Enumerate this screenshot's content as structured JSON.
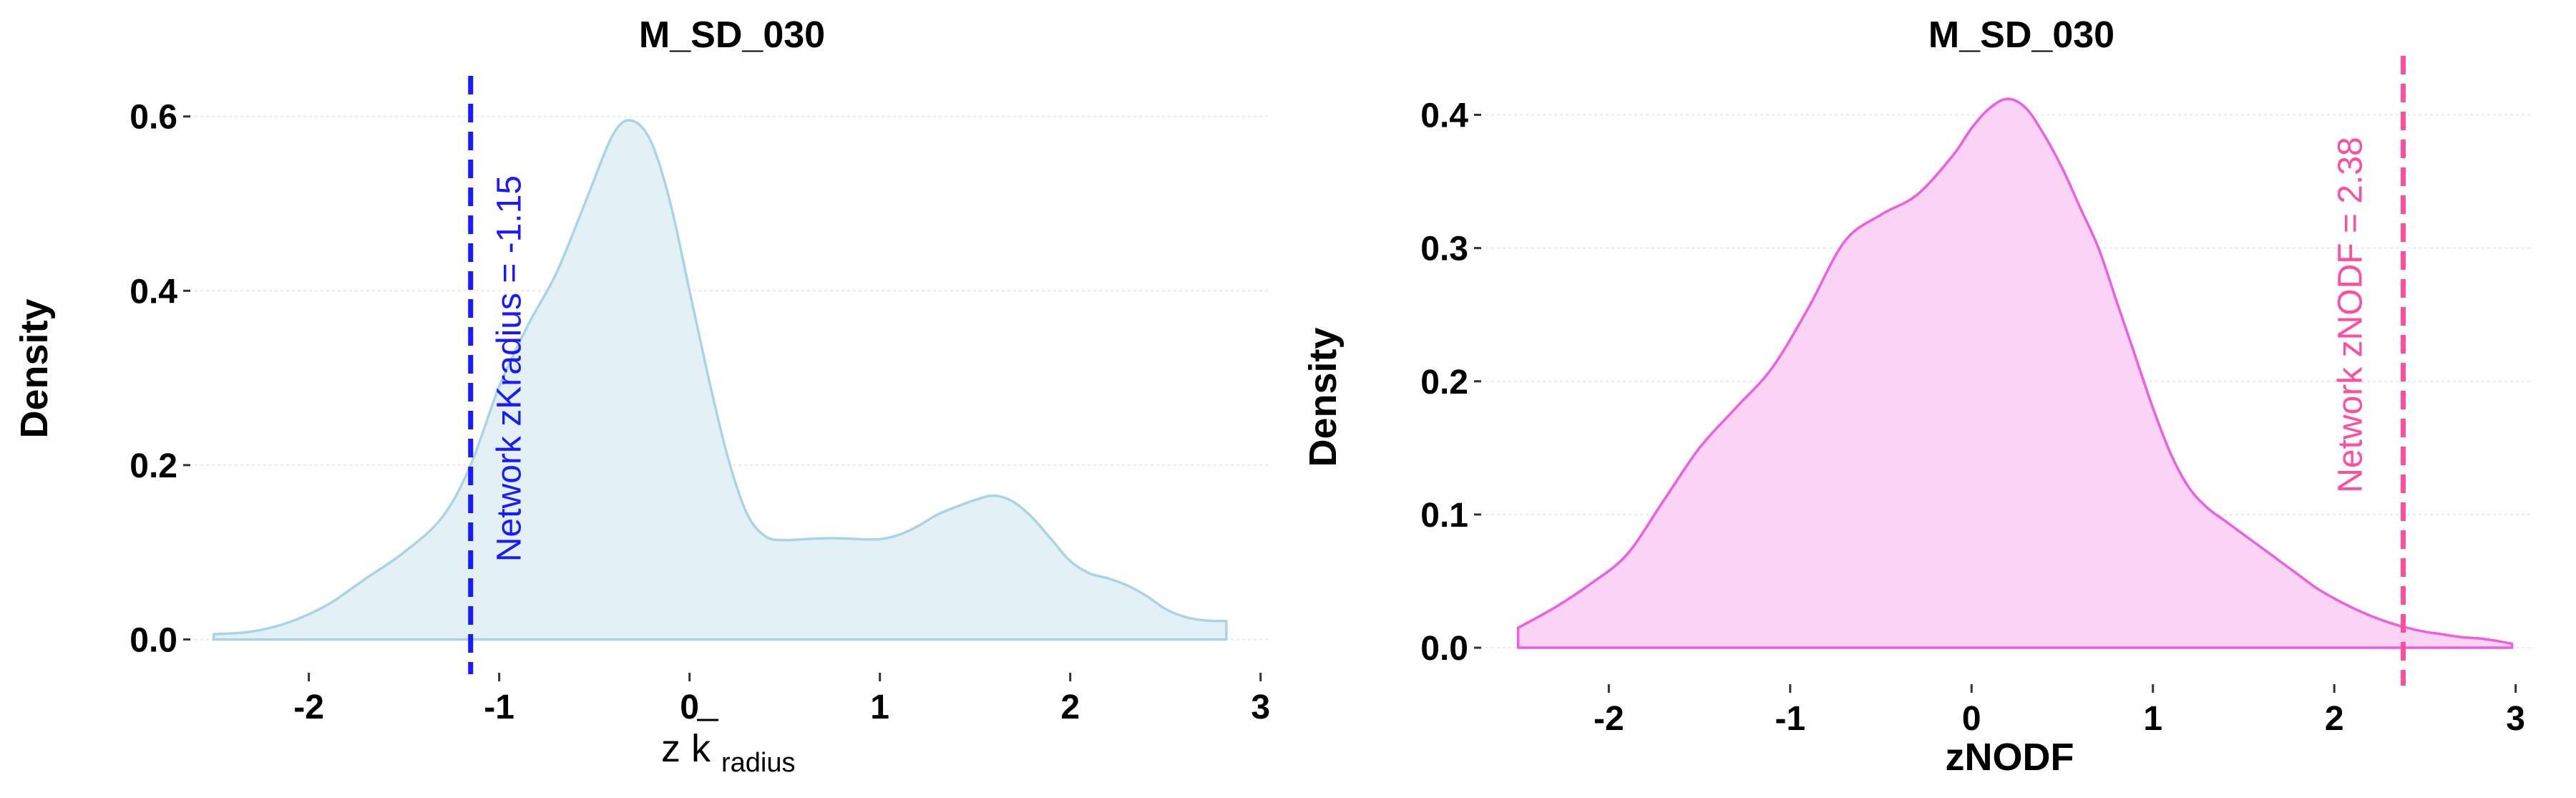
{
  "chart_data": [
    {
      "type": "area",
      "title": "M_SD_030",
      "xlabel": "z k̄radius",
      "xlabel_main": "z k",
      "xlabel_sub": "radius",
      "ylabel": "Density",
      "xlim": [
        -2.6,
        3.05
      ],
      "ylim": [
        -0.03,
        0.64
      ],
      "xticks": [
        -2,
        -1,
        0,
        1,
        2,
        3
      ],
      "yticks": [
        0.0,
        0.2,
        0.4,
        0.6
      ],
      "xtick_labels": [
        "-2",
        "-1",
        "0",
        "1",
        "2",
        "3"
      ],
      "ytick_labels": [
        "0.0",
        "0.2",
        "0.4",
        "0.6"
      ],
      "grid": true,
      "fill_color": "#e3f1f6",
      "line_color": "#a8d4e4",
      "series": [
        {
          "x": [
            -2.5,
            -2.3,
            -2.1,
            -1.9,
            -1.7,
            -1.5,
            -1.3,
            -1.15,
            -1.0,
            -0.85,
            -0.7,
            -0.55,
            -0.4,
            -0.3,
            -0.2,
            -0.1,
            0.0,
            0.1,
            0.2,
            0.3,
            0.4,
            0.5,
            0.6,
            0.7,
            0.8,
            0.9,
            1.0,
            1.1,
            1.2,
            1.3,
            1.4,
            1.5,
            1.6,
            1.7,
            1.8,
            1.9,
            2.0,
            2.1,
            2.2,
            2.3,
            2.4,
            2.5,
            2.6,
            2.7,
            2.82
          ],
          "y": [
            0.006,
            0.009,
            0.02,
            0.04,
            0.07,
            0.1,
            0.14,
            0.2,
            0.29,
            0.36,
            0.42,
            0.5,
            0.58,
            0.595,
            0.57,
            0.5,
            0.4,
            0.3,
            0.21,
            0.145,
            0.118,
            0.114,
            0.115,
            0.116,
            0.116,
            0.115,
            0.115,
            0.12,
            0.13,
            0.143,
            0.152,
            0.16,
            0.165,
            0.158,
            0.14,
            0.115,
            0.09,
            0.076,
            0.07,
            0.062,
            0.05,
            0.035,
            0.026,
            0.022,
            0.021
          ]
        }
      ],
      "vline": {
        "x": -1.15,
        "label": "Network zKradius = -1.15",
        "color": "#1a1aff"
      }
    },
    {
      "type": "area",
      "title": "M_SD_030",
      "xlabel": "zNODF",
      "ylabel": "Density",
      "xlim": [
        -2.68,
        3.1
      ],
      "ylim": [
        -0.022,
        0.44
      ],
      "xticks": [
        -2,
        -1,
        0,
        1,
        2,
        3
      ],
      "yticks": [
        0.0,
        0.1,
        0.2,
        0.3,
        0.4
      ],
      "xtick_labels": [
        "-2",
        "-1",
        "0",
        "1",
        "2",
        "3"
      ],
      "ytick_labels": [
        "0.0",
        "0.1",
        "0.2",
        "0.3",
        "0.4"
      ],
      "grid": true,
      "fill_color": "#fbd3f5",
      "line_color": "#ee5ee0",
      "series": [
        {
          "x": [
            -2.5,
            -2.3,
            -2.1,
            -1.9,
            -1.7,
            -1.5,
            -1.3,
            -1.1,
            -0.9,
            -0.7,
            -0.5,
            -0.3,
            -0.1,
            0.0,
            0.1,
            0.2,
            0.3,
            0.4,
            0.5,
            0.6,
            0.7,
            0.8,
            0.9,
            1.0,
            1.1,
            1.2,
            1.3,
            1.4,
            1.5,
            1.6,
            1.7,
            1.8,
            1.9,
            2.0,
            2.1,
            2.2,
            2.3,
            2.4,
            2.5,
            2.6,
            2.7,
            2.8,
            2.9,
            2.98
          ],
          "y": [
            0.015,
            0.03,
            0.048,
            0.07,
            0.11,
            0.15,
            0.18,
            0.21,
            0.255,
            0.305,
            0.325,
            0.34,
            0.37,
            0.39,
            0.405,
            0.412,
            0.405,
            0.385,
            0.36,
            0.33,
            0.3,
            0.26,
            0.22,
            0.18,
            0.145,
            0.12,
            0.105,
            0.095,
            0.085,
            0.075,
            0.065,
            0.055,
            0.045,
            0.037,
            0.03,
            0.024,
            0.019,
            0.015,
            0.012,
            0.01,
            0.008,
            0.007,
            0.005,
            0.003
          ]
        }
      ],
      "vline": {
        "x": 2.38,
        "label": "Network zNODF = 2.38",
        "color": "#ff4d9f"
      }
    }
  ]
}
